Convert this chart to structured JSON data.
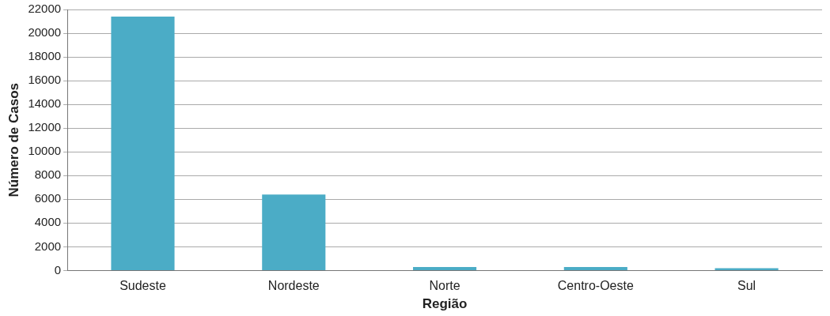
{
  "chart_data": {
    "type": "bar",
    "xlabel": "Região",
    "ylabel": "Número de Casos",
    "categories": [
      "Sudeste",
      "Nordeste",
      "Norte",
      "Centro-Oeste",
      "Sul"
    ],
    "values": [
      21400,
      6400,
      300,
      300,
      200
    ],
    "color": "#4bacc6",
    "ylim": [
      0,
      22000
    ],
    "yticks": [
      0,
      2000,
      4000,
      6000,
      8000,
      10000,
      12000,
      14000,
      16000,
      18000,
      20000,
      22000
    ],
    "grid": "y",
    "legend": false
  }
}
